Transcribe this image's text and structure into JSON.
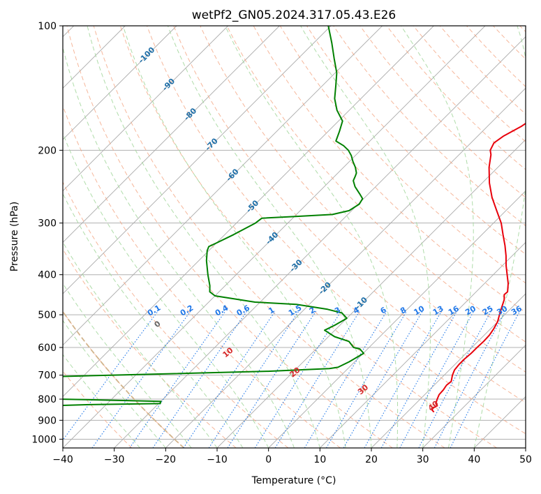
{
  "chart_data": {
    "type": "line",
    "subtype": "skew-T log-P diagram",
    "title": "wetPf2_GN05.2024.317.05.43.E26",
    "xlabel": "Temperature (°C)",
    "ylabel": "Pressure (hPa)",
    "xlim": [
      -40,
      50
    ],
    "ylim": [
      1050,
      100
    ],
    "y_scale": "log",
    "grid": true,
    "x_ticks": [
      -40,
      -30,
      -20,
      -10,
      0,
      10,
      20,
      30,
      40,
      50
    ],
    "y_ticks": [
      100,
      200,
      300,
      400,
      500,
      600,
      700,
      800,
      900,
      1000
    ],
    "colors": {
      "temperature": "#e8000b",
      "dewpoint": "#008000",
      "isotherm": "#aaaaaa",
      "dry_adiabat": "#f4a582",
      "moist_adiabat": "#a6d8a0",
      "mixing_ratio": "#1f77e8",
      "isotherm_label": "#1f6fa8",
      "dry_adiabat_label": "#d62728",
      "lcl_curve": "#d2b48c"
    },
    "series": [
      {
        "name": "Temperature",
        "points": [
          [
            25.2,
            860
          ],
          [
            24.4,
            850
          ],
          [
            24.2,
            840
          ],
          [
            24.6,
            830
          ],
          [
            23.9,
            820
          ],
          [
            23.3,
            800
          ],
          [
            22.8,
            780
          ],
          [
            22.7,
            760
          ],
          [
            22.4,
            740
          ],
          [
            22.6,
            725
          ],
          [
            21.6,
            700
          ],
          [
            21.0,
            680
          ],
          [
            20.8,
            660
          ],
          [
            20.8,
            640
          ],
          [
            21.0,
            620
          ],
          [
            21.0,
            600
          ],
          [
            21.1,
            580
          ],
          [
            21.0,
            560
          ],
          [
            20.6,
            540
          ],
          [
            20.0,
            520
          ],
          [
            19.0,
            500
          ],
          [
            18.0,
            480
          ],
          [
            17.0,
            460
          ],
          [
            16.0,
            447
          ],
          [
            16.1,
            440
          ],
          [
            14.6,
            420
          ],
          [
            12.7,
            400
          ],
          [
            10.7,
            380
          ],
          [
            8.8,
            360
          ],
          [
            6.6,
            340
          ],
          [
            4.1,
            320
          ],
          [
            1.5,
            300
          ],
          [
            -1.8,
            280
          ],
          [
            -5.3,
            260
          ],
          [
            -8.6,
            240
          ],
          [
            -11.7,
            220
          ],
          [
            -13.8,
            205
          ],
          [
            -14.8,
            200
          ],
          [
            -15.5,
            192
          ],
          [
            -15.0,
            185
          ],
          [
            -13.4,
            175
          ],
          [
            -12.4,
            165
          ],
          [
            -13.5,
            155
          ],
          [
            -16.5,
            145
          ],
          [
            -20.0,
            138
          ],
          [
            -22.9,
            130
          ],
          [
            -24.8,
            123
          ],
          [
            -25.4,
            115
          ],
          [
            -24.8,
            110
          ],
          [
            -24.0,
            105
          ],
          [
            -22.6,
            100
          ]
        ]
      },
      {
        "name": "Dewpoint",
        "points": [
          [
            -57.0,
            835
          ],
          [
            -43.2,
            825
          ],
          [
            -29.7,
            820
          ],
          [
            -30.0,
            810
          ],
          [
            -50.0,
            800
          ],
          [
            -60.0,
            790
          ],
          [
            -54.0,
            705
          ],
          [
            -15.0,
            685
          ],
          [
            -3.6,
            675
          ],
          [
            -2.2,
            670
          ],
          [
            -1.1,
            650
          ],
          [
            0.1,
            620
          ],
          [
            -1.5,
            605
          ],
          [
            -3.0,
            600
          ],
          [
            -5.1,
            580
          ],
          [
            -8.8,
            565
          ],
          [
            -12.0,
            545
          ],
          [
            -11.0,
            530
          ],
          [
            -10.0,
            510
          ],
          [
            -12.0,
            495
          ],
          [
            -15.5,
            485
          ],
          [
            -22.5,
            472
          ],
          [
            -31.0,
            466
          ],
          [
            -40.0,
            450
          ],
          [
            -41.8,
            440
          ],
          [
            -43.0,
            425
          ],
          [
            -45.5,
            400
          ],
          [
            -48.5,
            370
          ],
          [
            -50.3,
            350
          ],
          [
            -50.8,
            342
          ],
          [
            -50.0,
            335
          ],
          [
            -48.3,
            320
          ],
          [
            -46.3,
            300
          ],
          [
            -46.0,
            292
          ],
          [
            -39.5,
            289
          ],
          [
            -33.0,
            286
          ],
          [
            -30.5,
            280
          ],
          [
            -29.8,
            270
          ],
          [
            -30.2,
            262
          ],
          [
            -31.7,
            255
          ],
          [
            -34.0,
            245
          ],
          [
            -35.5,
            237
          ],
          [
            -36.0,
            231
          ],
          [
            -36.4,
            227
          ],
          [
            -37.7,
            220
          ],
          [
            -39.3,
            213
          ],
          [
            -40.8,
            206
          ],
          [
            -42.4,
            200
          ],
          [
            -44.2,
            195
          ],
          [
            -46.6,
            190
          ],
          [
            -47.8,
            180
          ],
          [
            -49.2,
            170
          ],
          [
            -52.4,
            160
          ],
          [
            -55.1,
            150
          ],
          [
            -57.3,
            140
          ],
          [
            -59.7,
            130
          ],
          [
            -63.0,
            120
          ],
          [
            -66.5,
            110
          ],
          [
            -70.5,
            100
          ]
        ]
      }
    ],
    "isotherm_labels": [
      "-100",
      "-90",
      "-80",
      "-70",
      "-60",
      "-50",
      "-40",
      "-30",
      "-20",
      "-10"
    ],
    "dry_adiabat_labels": [
      "0",
      "10",
      "20",
      "30",
      "40"
    ],
    "mixing_ratio_labels": [
      "0.1",
      "0.2",
      "0.4",
      "0.6",
      "1",
      "1.5",
      "2",
      "3",
      "4",
      "6",
      "8",
      "10",
      "13",
      "16",
      "20",
      "25",
      "30",
      "36"
    ],
    "isotherm_values": [
      -100,
      -90,
      -80,
      -70,
      -60,
      -50,
      -40,
      -30,
      -20,
      -10
    ],
    "dry_adiabat_values": [
      0,
      10,
      20,
      30,
      40
    ],
    "mixing_ratio_values": [
      0.1,
      0.2,
      0.4,
      0.6,
      1,
      1.5,
      2,
      3,
      4,
      6,
      8,
      10,
      13,
      16,
      20,
      25,
      30,
      36
    ]
  }
}
